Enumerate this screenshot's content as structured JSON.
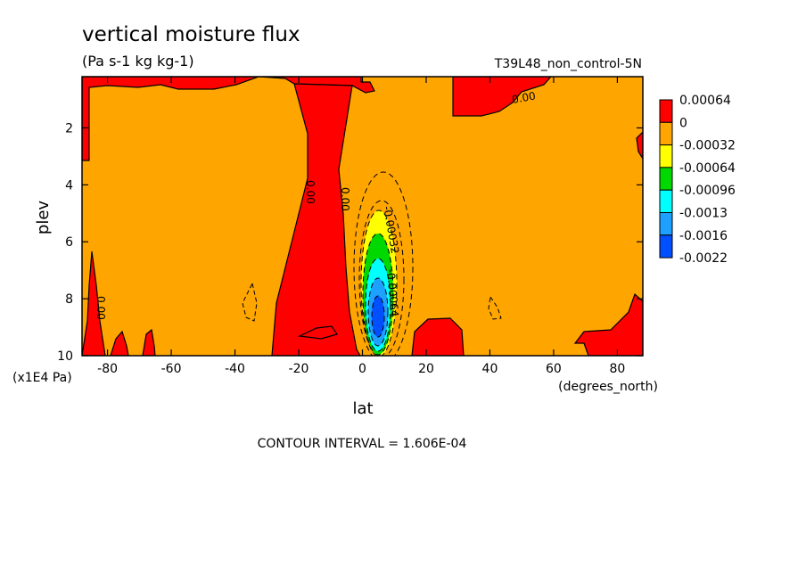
{
  "chart_data": {
    "type": "heatmap",
    "title": "vertical moisture flux",
    "units": "(Pa s-1 kg kg-1)",
    "run_label": "T39L48_non_control-5N",
    "xlabel": "lat",
    "ylabel": "plev",
    "x_unit_label": "(degrees_north)",
    "y_unit_label": "(x1E4 Pa)",
    "xlim": [
      -88,
      88
    ],
    "ylim": [
      10,
      0.2
    ],
    "x_ticks": [
      "-80",
      "-60",
      "-40",
      "-20",
      "0",
      "20",
      "40",
      "60",
      "80"
    ],
    "y_ticks": [
      "2",
      "4",
      "6",
      "8",
      "10"
    ],
    "contour_interval_text": "CONTOUR INTERVAL = 1.606E-04",
    "legend": {
      "levels": [
        "0.00064",
        "0",
        "-0.00032",
        "-0.00064",
        "-0.00096",
        "-0.0013",
        "-0.0016",
        "-0.0022"
      ],
      "colors": [
        "#ff0000",
        "#ffa500",
        "#ffff00",
        "#00d800",
        "#00ffff",
        "#1ea0ff",
        "#0050ff"
      ]
    },
    "contour_labels": [
      "0.00",
      "0.00",
      "0.00",
      "0.00",
      "-0.00032",
      "-0.00064"
    ]
  }
}
